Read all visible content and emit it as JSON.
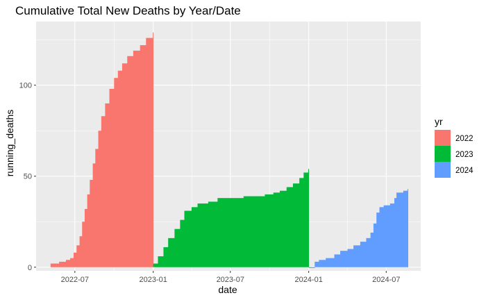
{
  "chart_data": {
    "type": "area",
    "title": "Cumulative Total New Deaths by Year/Date",
    "xlabel": "date",
    "ylabel": "running_deaths",
    "xlim": [
      "2022-04-01",
      "2024-09-20"
    ],
    "ylim": [
      -2,
      135
    ],
    "y_ticks": [
      0,
      50,
      100
    ],
    "x_ticks": [
      {
        "date": "2022-07-01",
        "label": "2022-07"
      },
      {
        "date": "2023-01-01",
        "label": "2023-01"
      },
      {
        "date": "2023-07-01",
        "label": "2023-07"
      },
      {
        "date": "2024-01-01",
        "label": "2024-01"
      },
      {
        "date": "2024-07-01",
        "label": "2024-07"
      }
    ],
    "grid": true,
    "legend_position": "right",
    "legend_title": "yr",
    "series": [
      {
        "name": "2022",
        "color": "#F8766D",
        "points": [
          [
            "2022-05-05",
            2
          ],
          [
            "2022-05-25",
            3
          ],
          [
            "2022-06-10",
            4
          ],
          [
            "2022-06-20",
            5
          ],
          [
            "2022-06-28",
            8
          ],
          [
            "2022-07-05",
            12
          ],
          [
            "2022-07-12",
            17
          ],
          [
            "2022-07-18",
            25
          ],
          [
            "2022-07-24",
            32
          ],
          [
            "2022-07-30",
            40
          ],
          [
            "2022-08-05",
            48
          ],
          [
            "2022-08-12",
            57
          ],
          [
            "2022-08-18",
            65
          ],
          [
            "2022-08-25",
            75
          ],
          [
            "2022-09-01",
            83
          ],
          [
            "2022-09-10",
            90
          ],
          [
            "2022-09-20",
            98
          ],
          [
            "2022-10-01",
            104
          ],
          [
            "2022-10-10",
            108
          ],
          [
            "2022-10-20",
            112
          ],
          [
            "2022-11-01",
            116
          ],
          [
            "2022-11-15",
            119
          ],
          [
            "2022-12-01",
            122
          ],
          [
            "2022-12-15",
            126
          ],
          [
            "2022-12-31",
            129
          ]
        ]
      },
      {
        "name": "2023",
        "color": "#00BA38",
        "points": [
          [
            "2023-01-01",
            2
          ],
          [
            "2023-01-12",
            6
          ],
          [
            "2023-01-25",
            11
          ],
          [
            "2023-02-05",
            16
          ],
          [
            "2023-02-20",
            21
          ],
          [
            "2023-03-05",
            26
          ],
          [
            "2023-03-15",
            31
          ],
          [
            "2023-04-01",
            33
          ],
          [
            "2023-04-15",
            35
          ],
          [
            "2023-05-10",
            36
          ],
          [
            "2023-06-01",
            38
          ],
          [
            "2023-07-01",
            38
          ],
          [
            "2023-08-01",
            39
          ],
          [
            "2023-09-01",
            39
          ],
          [
            "2023-09-20",
            40
          ],
          [
            "2023-10-10",
            41
          ],
          [
            "2023-10-25",
            42
          ],
          [
            "2023-11-10",
            44
          ],
          [
            "2023-11-25",
            46
          ],
          [
            "2023-12-10",
            49
          ],
          [
            "2023-12-20",
            52
          ],
          [
            "2023-12-31",
            54
          ]
        ]
      },
      {
        "name": "2024",
        "color": "#619CFF",
        "points": [
          [
            "2024-01-01",
            0
          ],
          [
            "2024-01-15",
            3
          ],
          [
            "2024-01-25",
            4
          ],
          [
            "2024-02-10",
            5
          ],
          [
            "2024-03-01",
            7
          ],
          [
            "2024-03-15",
            9
          ],
          [
            "2024-04-01",
            10
          ],
          [
            "2024-04-15",
            12
          ],
          [
            "2024-05-01",
            14
          ],
          [
            "2024-05-15",
            16
          ],
          [
            "2024-05-25",
            19
          ],
          [
            "2024-06-01",
            24
          ],
          [
            "2024-06-08",
            30
          ],
          [
            "2024-06-15",
            33
          ],
          [
            "2024-06-25",
            34
          ],
          [
            "2024-07-10",
            35
          ],
          [
            "2024-07-20",
            38
          ],
          [
            "2024-07-25",
            41
          ],
          [
            "2024-08-10",
            42
          ],
          [
            "2024-08-20",
            43
          ]
        ]
      }
    ]
  }
}
